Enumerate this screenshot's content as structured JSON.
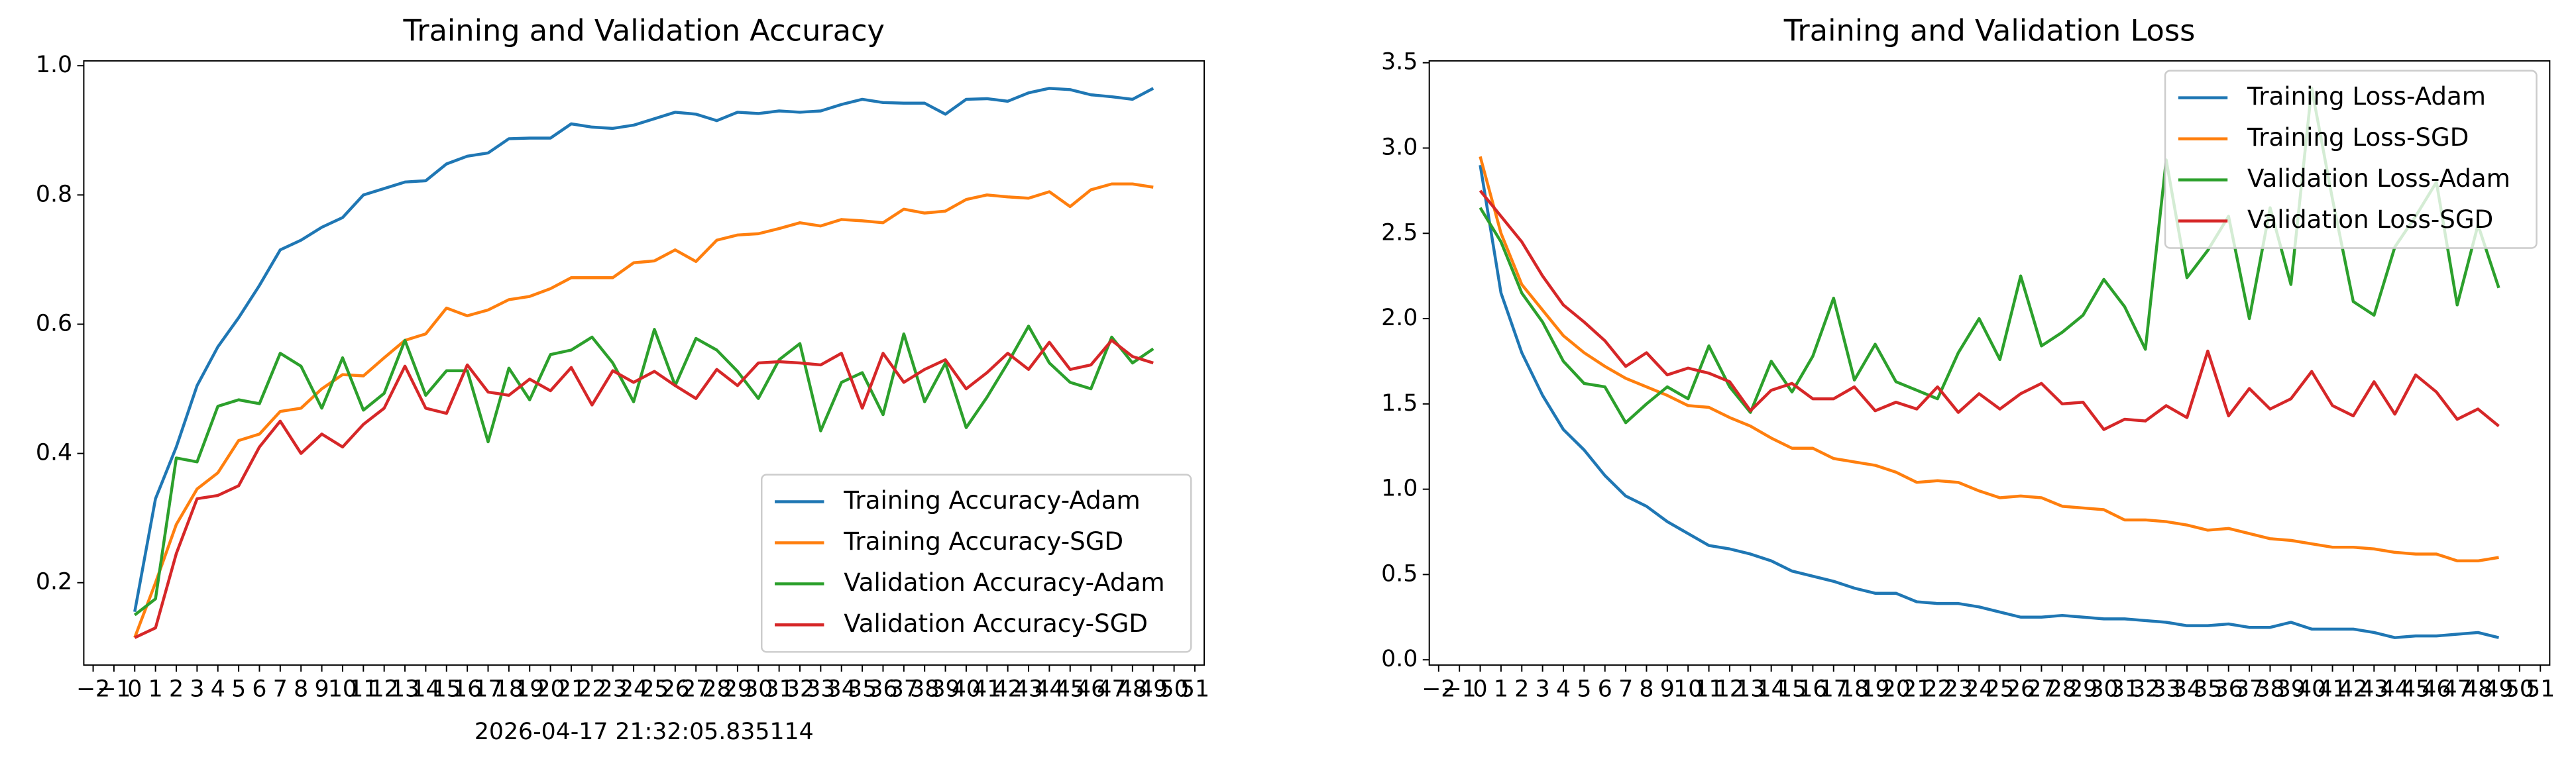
{
  "chart_data": [
    {
      "type": "line",
      "title": "Training and Validation Accuracy",
      "annotation": "2026-04-17 21:32:05.835114",
      "x": [
        0,
        1,
        2,
        3,
        4,
        5,
        6,
        7,
        8,
        9,
        10,
        11,
        12,
        13,
        14,
        15,
        16,
        17,
        18,
        19,
        20,
        21,
        22,
        23,
        24,
        25,
        26,
        27,
        28,
        29,
        30,
        31,
        32,
        33,
        34,
        35,
        36,
        37,
        38,
        39,
        40,
        41,
        42,
        43,
        44,
        45,
        46,
        47,
        48,
        49
      ],
      "xlim": [
        -2.45,
        51.45
      ],
      "xticks": [
        {
          "value": -2,
          "label": "−2"
        },
        {
          "value": -1,
          "label": "−1"
        },
        0,
        1,
        2,
        3,
        4,
        5,
        6,
        7,
        8,
        9,
        10,
        11,
        12,
        13,
        14,
        15,
        16,
        17,
        18,
        19,
        20,
        21,
        22,
        23,
        24,
        25,
        26,
        27,
        28,
        29,
        30,
        31,
        32,
        33,
        34,
        35,
        36,
        37,
        38,
        39,
        40,
        41,
        42,
        43,
        44,
        45,
        46,
        47,
        48,
        49,
        50,
        51
      ],
      "ylim": [
        0.0725,
        1.0075
      ],
      "yticks": [
        0.2,
        0.4,
        0.6,
        0.8,
        {
          "value": 1,
          "label": "1.0"
        }
      ],
      "grid": false,
      "legend": "lower right",
      "series": [
        {
          "name": "Training Accuracy-Adam",
          "color": "#1f77b4",
          "values": [
            0.155,
            0.33,
            0.41,
            0.505,
            0.565,
            0.61,
            0.66,
            0.715,
            0.73,
            0.75,
            0.765,
            0.8,
            0.81,
            0.82,
            0.822,
            0.848,
            0.86,
            0.865,
            0.887,
            0.888,
            0.888,
            0.91,
            0.905,
            0.903,
            0.908,
            0.918,
            0.928,
            0.925,
            0.915,
            0.928,
            0.926,
            0.93,
            0.928,
            0.93,
            0.94,
            0.948,
            0.943,
            0.942,
            0.942,
            0.925,
            0.948,
            0.949,
            0.945,
            0.958,
            0.965,
            0.963,
            0.955,
            0.952,
            0.948,
            0.965
          ]
        },
        {
          "name": "Training Accuracy-SGD",
          "color": "#ff7f0e",
          "values": [
            0.115,
            0.2,
            0.29,
            0.345,
            0.37,
            0.42,
            0.43,
            0.465,
            0.47,
            0.5,
            0.522,
            0.52,
            0.548,
            0.575,
            0.585,
            0.625,
            0.613,
            0.622,
            0.638,
            0.643,
            0.655,
            0.672,
            0.672,
            0.672,
            0.695,
            0.698,
            0.715,
            0.697,
            0.73,
            0.738,
            0.74,
            0.748,
            0.757,
            0.752,
            0.762,
            0.76,
            0.757,
            0.778,
            0.772,
            0.775,
            0.793,
            0.8,
            0.797,
            0.795,
            0.805,
            0.782,
            0.808,
            0.817,
            0.817,
            0.812
          ]
        },
        {
          "name": "Validation Accuracy-Adam",
          "color": "#2ca02c",
          "values": [
            0.15,
            0.175,
            0.393,
            0.387,
            0.473,
            0.483,
            0.477,
            0.555,
            0.535,
            0.47,
            0.548,
            0.467,
            0.493,
            0.575,
            0.49,
            0.528,
            0.528,
            0.418,
            0.532,
            0.483,
            0.553,
            0.56,
            0.58,
            0.54,
            0.48,
            0.592,
            0.505,
            0.578,
            0.56,
            0.527,
            0.485,
            0.545,
            0.57,
            0.435,
            0.51,
            0.525,
            0.46,
            0.585,
            0.48,
            0.54,
            0.44,
            0.487,
            0.54,
            0.597,
            0.54,
            0.51,
            0.5,
            0.58,
            0.54,
            0.562
          ]
        },
        {
          "name": "Validation Accuracy-SGD",
          "color": "#d62728",
          "values": [
            0.115,
            0.13,
            0.245,
            0.33,
            0.335,
            0.35,
            0.41,
            0.45,
            0.4,
            0.43,
            0.41,
            0.445,
            0.47,
            0.535,
            0.47,
            0.462,
            0.537,
            0.495,
            0.49,
            0.515,
            0.497,
            0.533,
            0.475,
            0.528,
            0.51,
            0.527,
            0.505,
            0.485,
            0.53,
            0.505,
            0.54,
            0.542,
            0.54,
            0.537,
            0.555,
            0.47,
            0.555,
            0.51,
            0.53,
            0.545,
            0.5,
            0.525,
            0.555,
            0.53,
            0.572,
            0.53,
            0.537,
            0.575,
            0.55,
            0.54
          ]
        }
      ]
    },
    {
      "type": "line",
      "title": "Training and Validation Loss",
      "x": [
        0,
        1,
        2,
        3,
        4,
        5,
        6,
        7,
        8,
        9,
        10,
        11,
        12,
        13,
        14,
        15,
        16,
        17,
        18,
        19,
        20,
        21,
        22,
        23,
        24,
        25,
        26,
        27,
        28,
        29,
        30,
        31,
        32,
        33,
        34,
        35,
        36,
        37,
        38,
        39,
        40,
        41,
        42,
        43,
        44,
        45,
        46,
        47,
        48,
        49
      ],
      "xlim": [
        -2.45,
        51.45
      ],
      "xticks": [
        {
          "value": -2,
          "label": "−2"
        },
        {
          "value": -1,
          "label": "−1"
        },
        0,
        1,
        2,
        3,
        4,
        5,
        6,
        7,
        8,
        9,
        10,
        11,
        12,
        13,
        14,
        15,
        16,
        17,
        18,
        19,
        20,
        21,
        22,
        23,
        24,
        25,
        26,
        27,
        28,
        29,
        30,
        31,
        32,
        33,
        34,
        35,
        36,
        37,
        38,
        39,
        40,
        41,
        42,
        43,
        44,
        45,
        46,
        47,
        48,
        49,
        50,
        51
      ],
      "ylim": [
        -0.031,
        3.511
      ],
      "yticks": [
        {
          "value": 0,
          "label": "0.0"
        },
        0.5,
        {
          "value": 1,
          "label": "1.0"
        },
        1.5,
        {
          "value": 2,
          "label": "2.0"
        },
        2.5,
        {
          "value": 3,
          "label": "3.0"
        },
        3.5
      ],
      "grid": false,
      "legend": "upper right",
      "series": [
        {
          "name": "Training Loss-Adam",
          "color": "#1f77b4",
          "values": [
            2.9,
            2.15,
            1.8,
            1.55,
            1.35,
            1.23,
            1.08,
            0.96,
            0.9,
            0.81,
            0.74,
            0.67,
            0.65,
            0.62,
            0.58,
            0.52,
            0.49,
            0.46,
            0.42,
            0.39,
            0.39,
            0.34,
            0.33,
            0.33,
            0.31,
            0.28,
            0.25,
            0.25,
            0.26,
            0.25,
            0.24,
            0.24,
            0.23,
            0.22,
            0.2,
            0.2,
            0.21,
            0.19,
            0.19,
            0.22,
            0.18,
            0.18,
            0.18,
            0.16,
            0.13,
            0.14,
            0.14,
            0.15,
            0.16,
            0.13
          ]
        },
        {
          "name": "Training Loss-SGD",
          "color": "#ff7f0e",
          "values": [
            2.95,
            2.5,
            2.2,
            2.05,
            1.9,
            1.8,
            1.72,
            1.65,
            1.6,
            1.55,
            1.49,
            1.48,
            1.42,
            1.37,
            1.3,
            1.24,
            1.24,
            1.18,
            1.16,
            1.14,
            1.1,
            1.04,
            1.05,
            1.04,
            0.99,
            0.95,
            0.96,
            0.95,
            0.9,
            0.89,
            0.88,
            0.82,
            0.82,
            0.81,
            0.79,
            0.76,
            0.77,
            0.74,
            0.71,
            0.7,
            0.68,
            0.66,
            0.66,
            0.65,
            0.63,
            0.62,
            0.62,
            0.58,
            0.58,
            0.6
          ]
        },
        {
          "name": "Validation Loss-Adam",
          "color": "#2ca02c",
          "values": [
            2.65,
            2.45,
            2.15,
            1.98,
            1.75,
            1.62,
            1.6,
            1.39,
            1.5,
            1.6,
            1.53,
            1.84,
            1.6,
            1.45,
            1.75,
            1.57,
            1.78,
            2.12,
            1.64,
            1.85,
            1.63,
            1.58,
            1.53,
            1.8,
            2.0,
            1.76,
            2.25,
            1.84,
            1.92,
            2.02,
            2.23,
            2.07,
            1.82,
            2.93,
            2.24,
            2.4,
            2.6,
            2.0,
            2.65,
            2.2,
            3.35,
            2.7,
            2.1,
            2.02,
            2.42,
            2.6,
            2.8,
            2.08,
            2.55,
            2.18
          ]
        },
        {
          "name": "Validation Loss-SGD",
          "color": "#d62728",
          "values": [
            2.75,
            2.6,
            2.45,
            2.25,
            2.08,
            1.98,
            1.87,
            1.72,
            1.8,
            1.67,
            1.71,
            1.68,
            1.63,
            1.46,
            1.58,
            1.62,
            1.53,
            1.53,
            1.6,
            1.46,
            1.51,
            1.47,
            1.6,
            1.45,
            1.56,
            1.47,
            1.56,
            1.62,
            1.5,
            1.51,
            1.35,
            1.41,
            1.4,
            1.49,
            1.42,
            1.81,
            1.43,
            1.59,
            1.47,
            1.53,
            1.69,
            1.49,
            1.43,
            1.63,
            1.44,
            1.67,
            1.57,
            1.41,
            1.47,
            1.37
          ]
        }
      ]
    }
  ]
}
